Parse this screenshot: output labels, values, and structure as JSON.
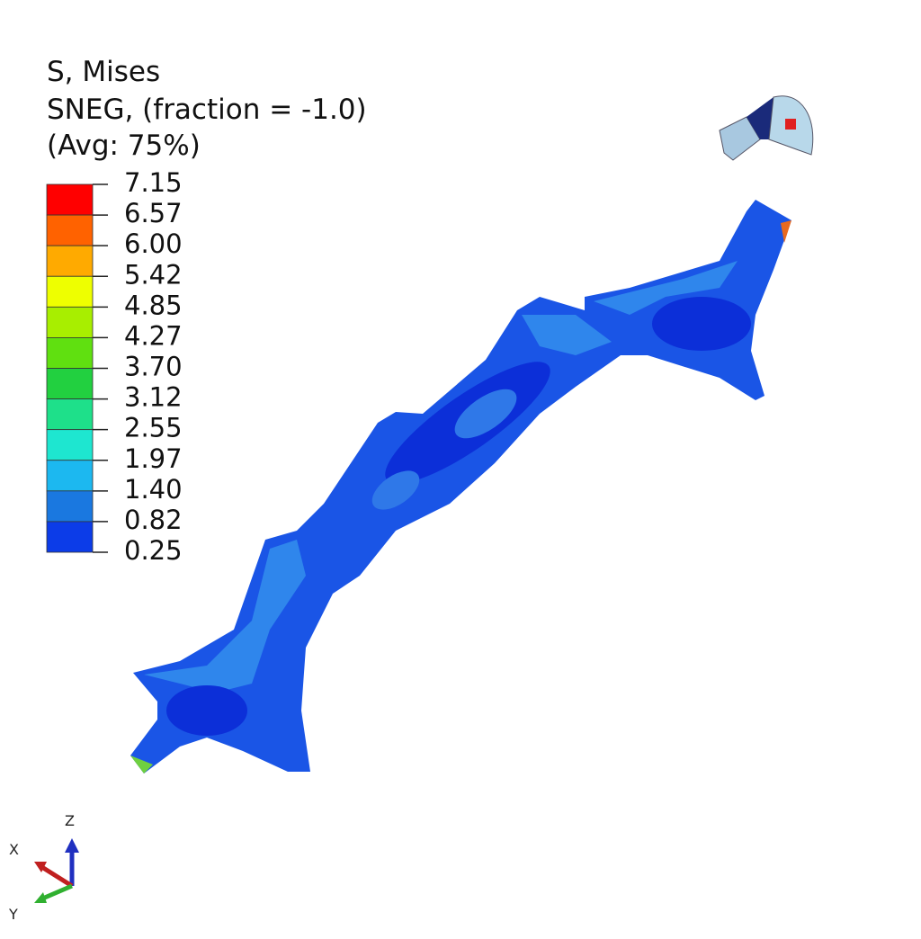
{
  "legend": {
    "title": [
      "S, Mises",
      "SNEG, (fraction = -1.0)",
      "(Avg: 75%)"
    ],
    "labels": [
      "7.15",
      "6.57",
      "6.00",
      "5.42",
      "4.85",
      "4.27",
      "3.70",
      "3.12",
      "2.55",
      "1.97",
      "1.40",
      "0.82",
      "0.25"
    ],
    "bands": [
      "#ff0000",
      "#ff6200",
      "#ffaa00",
      "#eeff00",
      "#a8ee00",
      "#60e010",
      "#22d040",
      "#1ee08a",
      "#1ee6d0",
      "#1cb8f0",
      "#1a78e0",
      "#0c3ce8"
    ]
  },
  "triad": {
    "x": "X",
    "y": "Y",
    "z": "Z"
  }
}
